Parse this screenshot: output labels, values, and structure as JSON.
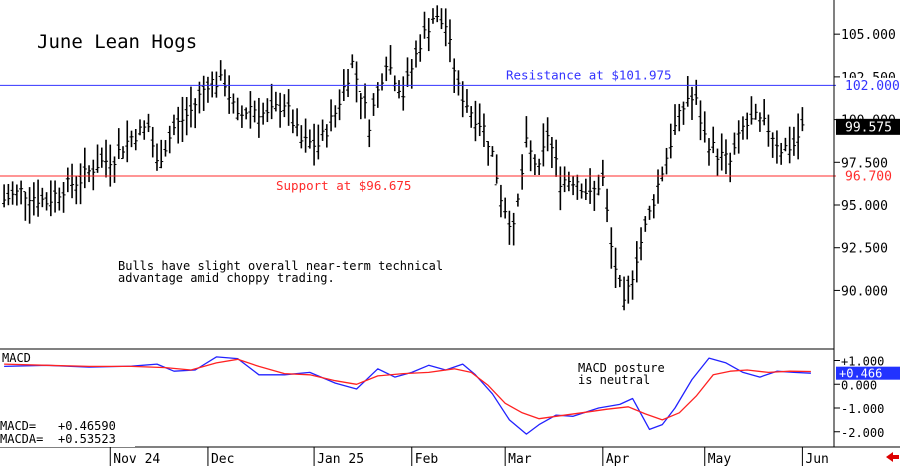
{
  "colors": {
    "resistance": "#3333ff",
    "support": "#ff2b2b",
    "macd": "#2222ff",
    "macda": "#ff2222",
    "bars": "#000000",
    "last_price_bg": "#000000",
    "last_macd_bg": "#2233ff",
    "nav_arrow": "#dd0000"
  },
  "chart_data": [
    {
      "type": "bar",
      "title": "June Lean Hogs",
      "y_ticks": [
        "105.000",
        "102.500",
        "100.000",
        "97.500",
        "95.000",
        "92.500",
        "90.000"
      ],
      "y_tick_values": [
        105,
        102.5,
        100,
        97.5,
        95,
        92.5,
        90
      ],
      "ylim": [
        86.63,
        107.0
      ],
      "x_ticks": [
        "Nov 24",
        "Dec",
        "Jan 25",
        "Feb",
        "Mar",
        "Apr",
        "May",
        "Jun"
      ],
      "x_tick_index": [
        25,
        48,
        73,
        96,
        118,
        141,
        165,
        188
      ],
      "n_slots": 195,
      "resistance": {
        "value": 102.0,
        "label": "Resistance at $101.975",
        "axis_label": "102.000"
      },
      "support": {
        "value": 96.7,
        "label": "Support at $96.675",
        "axis_label": "96.700"
      },
      "last_price": {
        "value": 99.575,
        "label": "99.575"
      },
      "annotation": [
        "Bulls have slight overall near-term technical",
        "advantage amid choppy trading."
      ],
      "price_path": [
        [
          0,
          95.3
        ],
        [
          4,
          95.8
        ],
        [
          8,
          95.4
        ],
        [
          10,
          95.2
        ],
        [
          14,
          96.0
        ],
        [
          18,
          96.5
        ],
        [
          22,
          97.4
        ],
        [
          26,
          97.8
        ],
        [
          30,
          99.0
        ],
        [
          34,
          99.6
        ],
        [
          36,
          97.4
        ],
        [
          40,
          99.5
        ],
        [
          44,
          100.5
        ],
        [
          48,
          102.2
        ],
        [
          52,
          102.2
        ],
        [
          55,
          100.0
        ],
        [
          58,
          100.8
        ],
        [
          62,
          100.2
        ],
        [
          66,
          101.0
        ],
        [
          70,
          98.7
        ],
        [
          74,
          98.5
        ],
        [
          78,
          100.4
        ],
        [
          82,
          103.3
        ],
        [
          86,
          99.8
        ],
        [
          90,
          103.5
        ],
        [
          94,
          101.5
        ],
        [
          98,
          104.5
        ],
        [
          101,
          106.0
        ],
        [
          104,
          105.5
        ],
        [
          107,
          101.8
        ],
        [
          110,
          100.5
        ],
        [
          113,
          99.5
        ],
        [
          115,
          98.0
        ],
        [
          117,
          95.5
        ],
        [
          120,
          93.5
        ],
        [
          123,
          98.5
        ],
        [
          126,
          97.0
        ],
        [
          128,
          99.2
        ],
        [
          131,
          96.5
        ],
        [
          135,
          96.5
        ],
        [
          138,
          95.5
        ],
        [
          141,
          96.5
        ],
        [
          143,
          92.5
        ],
        [
          146,
          89.0
        ],
        [
          149,
          92.0
        ],
        [
          152,
          94.5
        ],
        [
          155,
          97.0
        ],
        [
          158,
          99.5
        ],
        [
          161,
          101.3
        ],
        [
          163,
          101.0
        ],
        [
          165,
          99.0
        ],
        [
          168,
          98.0
        ],
        [
          171,
          97.5
        ],
        [
          174,
          99.5
        ],
        [
          177,
          100.0
        ],
        [
          180,
          99.5
        ],
        [
          183,
          98.3
        ],
        [
          186,
          98.5
        ],
        [
          188,
          99.5
        ]
      ]
    },
    {
      "type": "line",
      "title": "MACD",
      "y_ticks": [
        "+1.000",
        "0.000",
        "-1.000",
        "-2.000"
      ],
      "y_tick_values": [
        1,
        0,
        -1,
        -2
      ],
      "ylim": [
        -2.6,
        1.4
      ],
      "readout": {
        "macd_label": "MACD=",
        "macd_value": "+0.46590",
        "macda_label": "MACDA=",
        "macda_value": "+0.53523"
      },
      "last_value_label": "+0.466",
      "annotation": [
        "MACD posture",
        "is neutral"
      ],
      "series": [
        {
          "key": "macd",
          "points": [
            [
              0,
              0.75
            ],
            [
              10,
              0.8
            ],
            [
              20,
              0.72
            ],
            [
              30,
              0.76
            ],
            [
              36,
              0.85
            ],
            [
              40,
              0.55
            ],
            [
              45,
              0.6
            ],
            [
              50,
              1.15
            ],
            [
              55,
              1.08
            ],
            [
              60,
              0.4
            ],
            [
              66,
              0.4
            ],
            [
              72,
              0.5
            ],
            [
              78,
              0.05
            ],
            [
              83,
              -0.2
            ],
            [
              88,
              0.65
            ],
            [
              92,
              0.3
            ],
            [
              96,
              0.5
            ],
            [
              100,
              0.8
            ],
            [
              104,
              0.6
            ],
            [
              108,
              0.85
            ],
            [
              111,
              0.4
            ],
            [
              115,
              -0.4
            ],
            [
              119,
              -1.5
            ],
            [
              123,
              -2.1
            ],
            [
              126,
              -1.7
            ],
            [
              130,
              -1.3
            ],
            [
              134,
              -1.35
            ],
            [
              140,
              -1.0
            ],
            [
              145,
              -0.85
            ],
            [
              148,
              -0.6
            ],
            [
              152,
              -1.9
            ],
            [
              155,
              -1.7
            ],
            [
              158,
              -1.0
            ],
            [
              162,
              0.2
            ],
            [
              166,
              1.1
            ],
            [
              170,
              0.9
            ],
            [
              174,
              0.5
            ],
            [
              178,
              0.3
            ],
            [
              182,
              0.55
            ],
            [
              186,
              0.5
            ],
            [
              190,
              0.466
            ]
          ]
        },
        {
          "key": "macda",
          "points": [
            [
              0,
              0.85
            ],
            [
              10,
              0.8
            ],
            [
              20,
              0.75
            ],
            [
              30,
              0.75
            ],
            [
              38,
              0.7
            ],
            [
              44,
              0.6
            ],
            [
              50,
              0.9
            ],
            [
              55,
              1.05
            ],
            [
              60,
              0.75
            ],
            [
              66,
              0.45
            ],
            [
              72,
              0.4
            ],
            [
              78,
              0.15
            ],
            [
              83,
              0.0
            ],
            [
              88,
              0.35
            ],
            [
              94,
              0.45
            ],
            [
              100,
              0.5
            ],
            [
              106,
              0.65
            ],
            [
              110,
              0.5
            ],
            [
              114,
              -0.05
            ],
            [
              118,
              -0.8
            ],
            [
              122,
              -1.2
            ],
            [
              126,
              -1.45
            ],
            [
              130,
              -1.35
            ],
            [
              136,
              -1.2
            ],
            [
              142,
              -1.05
            ],
            [
              147,
              -0.95
            ],
            [
              151,
              -1.25
            ],
            [
              155,
              -1.5
            ],
            [
              159,
              -1.2
            ],
            [
              163,
              -0.5
            ],
            [
              167,
              0.4
            ],
            [
              171,
              0.55
            ],
            [
              175,
              0.6
            ],
            [
              180,
              0.5
            ],
            [
              185,
              0.55
            ],
            [
              190,
              0.535
            ]
          ]
        }
      ]
    }
  ]
}
